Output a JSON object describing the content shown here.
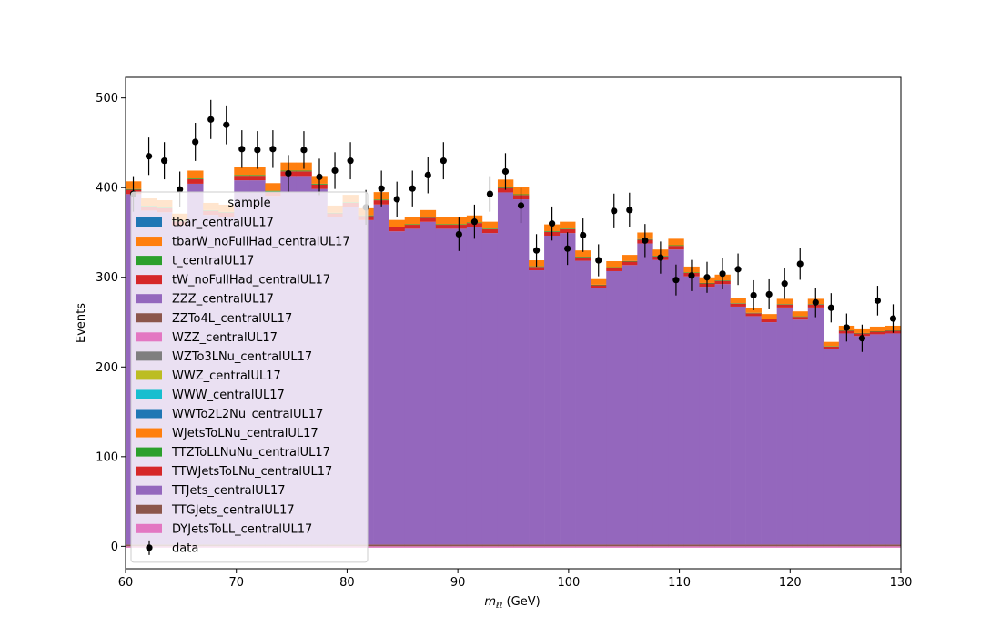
{
  "chart_data": {
    "type": "bar",
    "xlabel_main": "m",
    "xlabel_sub": "ℓℓ",
    "xlabel_unit": " (GeV)",
    "ylabel": "Events",
    "xlim": [
      60,
      130
    ],
    "ylim": [
      -25,
      523
    ],
    "xticks": [
      60,
      70,
      80,
      90,
      100,
      110,
      120,
      130
    ],
    "yticks": [
      0,
      100,
      200,
      300,
      400,
      500
    ],
    "bin_edges": [
      60.0,
      61.4,
      62.8,
      64.2,
      65.6,
      67.0,
      68.4,
      69.8,
      71.2,
      72.6,
      74.0,
      75.4,
      76.8,
      78.2,
      79.6,
      81.0,
      82.4,
      83.8,
      85.2,
      86.6,
      88.0,
      89.4,
      90.8,
      92.2,
      93.6,
      95.0,
      96.4,
      97.8,
      99.2,
      100.6,
      102.0,
      103.4,
      104.8,
      106.2,
      107.6,
      109.0,
      110.4,
      111.8,
      113.2,
      114.6,
      116.0,
      117.4,
      118.8,
      120.2,
      121.6,
      123.0,
      124.4,
      125.8,
      127.2,
      128.6,
      130.0
    ],
    "mc_totals": [
      407,
      388,
      386,
      371,
      419,
      383,
      381,
      423,
      423,
      405,
      428,
      428,
      413,
      380,
      392,
      377,
      395,
      364,
      367,
      375,
      367,
      367,
      369,
      362,
      409,
      401,
      319,
      359,
      362,
      330,
      298,
      318,
      325,
      350,
      331,
      343,
      312,
      300,
      303,
      277,
      266,
      259,
      276,
      262,
      276,
      228,
      246,
      243,
      245,
      246
    ],
    "ttjets_fraction": 0.965,
    "legend_title": "sample",
    "legend_position": "upper-left",
    "legend": [
      {
        "name": "tbar_centralUL17",
        "color": "#1f77b4"
      },
      {
        "name": "tbarW_noFullHad_centralUL17",
        "color": "#ff7f0e"
      },
      {
        "name": "t_centralUL17",
        "color": "#2ca02c"
      },
      {
        "name": "tW_noFullHad_centralUL17",
        "color": "#d62728"
      },
      {
        "name": "ZZZ_centralUL17",
        "color": "#9467bd"
      },
      {
        "name": "ZZTo4L_centralUL17",
        "color": "#8c564b"
      },
      {
        "name": "WZZ_centralUL17",
        "color": "#e377c2"
      },
      {
        "name": "WZTo3LNu_centralUL17",
        "color": "#7f7f7f"
      },
      {
        "name": "WWZ_centralUL17",
        "color": "#bcbd22"
      },
      {
        "name": "WWW_centralUL17",
        "color": "#17becf"
      },
      {
        "name": "WWTo2L2Nu_centralUL17",
        "color": "#1f77b4"
      },
      {
        "name": "WJetsToLNu_centralUL17",
        "color": "#ff7f0e"
      },
      {
        "name": "TTZToLLNuNu_centralUL17",
        "color": "#2ca02c"
      },
      {
        "name": "TTWJetsToLNu_centralUL17",
        "color": "#d62728"
      },
      {
        "name": "TTJets_centralUL17",
        "color": "#9467bd"
      },
      {
        "name": "TTGJets_centralUL17",
        "color": "#8c564b"
      },
      {
        "name": "DYJetsToLL_centralUL17",
        "color": "#e377c2"
      }
    ],
    "data_label": "data",
    "data_points": {
      "x": [
        60.7,
        62.1,
        63.5,
        64.9,
        66.3,
        67.7,
        69.1,
        70.5,
        71.9,
        73.3,
        74.7,
        76.1,
        77.5,
        78.9,
        80.3,
        81.7,
        83.1,
        84.5,
        85.9,
        87.3,
        88.7,
        90.1,
        91.5,
        92.9,
        94.3,
        95.7,
        97.1,
        98.5,
        99.9,
        101.3,
        102.7,
        104.1,
        105.5,
        106.9,
        108.3,
        109.7,
        111.1,
        112.5,
        113.9,
        115.3,
        116.7,
        118.1,
        119.5,
        120.9,
        122.3,
        123.7,
        125.1,
        126.5,
        127.9,
        129.3
      ],
      "y": [
        393,
        435,
        430,
        398,
        451,
        476,
        470,
        443,
        442,
        443,
        416,
        442,
        412,
        419,
        430,
        378,
        399,
        387,
        399,
        414,
        430,
        348,
        362,
        393,
        418,
        380,
        330,
        360,
        332,
        347,
        319,
        374,
        375,
        341,
        322,
        297,
        302,
        300,
        304,
        309,
        280,
        281,
        293,
        315,
        272,
        266,
        244,
        232,
        274,
        254
      ]
    }
  }
}
